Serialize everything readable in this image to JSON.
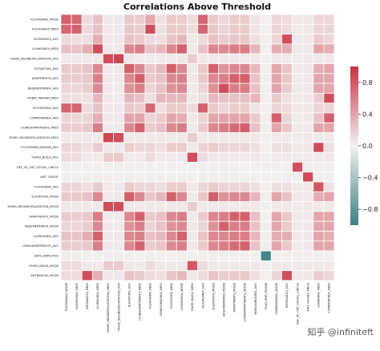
{
  "chart_data": {
    "type": "heatmap",
    "title": "Correlations Above Threshold",
    "rows": [
      "FLOORSMAX_MODE",
      "FLOORSMAX_MEDI",
      "ENTRANCES_AVG",
      "LIVINGAREA_MEDI",
      "YEARS_BEGINEXPLUATATION_AVG",
      "ELEVATORS_AVG",
      "APARTMENTS_AVG",
      "BASEMENTAREA_AVG",
      "ROBIN_MEDIAN_MEDI",
      "FLOORSMAX_AVG",
      "COMMONAREA_AVG",
      "LIVINGAPARTMENTS_MEDI",
      "YEARS_BEGINEXPLUATATION_MEDI",
      "FLOORSMIN_MEDIAN_AVG",
      "YEARS_BUILD_AVG",
      "DEF_30_CNT_SOCIAL_CIRCLE",
      "AMT_CREDIT",
      "FLOORSMIN_AVG",
      "ELEVATORS_MODE",
      "YEARS_BEGINEXPLUATATION_MODE",
      "APARTMENTS_MODE",
      "BASEMENTAREA_MODE",
      "LIVINGAREA_AVG",
      "LIVINGAPARTMENTS_AVG",
      "DAYS_EMPLOYED",
      "YEARS_BUILD_MODE",
      "ENTRANCES_MODE"
    ],
    "columns": [
      "FLOORSMAX_MODE",
      "FLOORSMAX_MEDI",
      "ENTRANCES_MEDI",
      "LIVINGAREA_MEDI",
      "YEARS_BEGINEXPLUATATION_MEDI",
      "YEARS_BEGINEXPLUATATION_AVG",
      "ELEVATORS_AVG",
      "LIVINGAPARTMENTS_MEDI",
      "FLOORSMIN_MEDI",
      "NONLIVINGAREA_MEDI",
      "ELEVATORS_MEDI",
      "LIVINGAREA_MODE",
      "YEARS_BUILD_MEDI",
      "FLOORSMAX_AVG",
      "ELEVATORS_MODE",
      "BASEMENTAREA_MODE",
      "APARTMENTS_MODE",
      "LIVINGAPARTMENTS_MODE",
      "NONLIVINGAREA_AVG",
      "FLAG_EMP_PHONE",
      "COMMONAREA_MODE",
      "ENTRANCES_AVG",
      "DEF_60_CNT_SOCIAL_CIRCLE",
      "AMT_GOODS_PRICE",
      "LANDAREA_MEDI",
      "COMMONAREA_MEDI"
    ],
    "matrix": [
      [
        0.75,
        0.72,
        0.12,
        0.25,
        0.05,
        0.05,
        0.22,
        0.2,
        0.38,
        0.1,
        0.22,
        0.2,
        0.12,
        0.72,
        0.22,
        0.15,
        0.2,
        0.2,
        0.08,
        0.02,
        0.15,
        0.12,
        0.05,
        0.05,
        0.15,
        0.15
      ],
      [
        0.72,
        0.75,
        0.12,
        0.25,
        0.05,
        0.05,
        0.22,
        0.2,
        0.85,
        0.1,
        0.22,
        0.2,
        0.12,
        0.72,
        0.22,
        0.15,
        0.2,
        0.2,
        0.08,
        0.02,
        0.15,
        0.12,
        0.05,
        0.05,
        0.15,
        0.15
      ],
      [
        0.12,
        0.12,
        0.1,
        0.35,
        0.05,
        0.05,
        0.25,
        0.22,
        0.12,
        0.1,
        0.25,
        0.3,
        0.05,
        0.12,
        0.25,
        0.2,
        0.22,
        0.22,
        0.1,
        0.02,
        0.15,
        0.85,
        0.05,
        0.05,
        0.2,
        0.15
      ],
      [
        0.25,
        0.25,
        0.35,
        0.85,
        0.05,
        0.05,
        0.55,
        0.6,
        0.25,
        0.3,
        0.55,
        0.75,
        0.05,
        0.25,
        0.55,
        0.55,
        0.6,
        0.6,
        0.3,
        0.02,
        0.35,
        0.35,
        0.05,
        0.05,
        0.4,
        0.35
      ],
      [
        0.05,
        0.05,
        0.05,
        0.05,
        0.85,
        0.9,
        0.05,
        0.05,
        0.05,
        0.05,
        0.05,
        0.05,
        0.2,
        0.05,
        0.05,
        0.05,
        0.05,
        0.05,
        0.05,
        0.02,
        0.05,
        0.05,
        0.05,
        0.05,
        0.05,
        0.05
      ],
      [
        0.22,
        0.22,
        0.25,
        0.55,
        0.05,
        0.05,
        0.75,
        0.55,
        0.22,
        0.3,
        0.75,
        0.55,
        0.05,
        0.22,
        0.75,
        0.5,
        0.55,
        0.55,
        0.3,
        0.02,
        0.4,
        0.25,
        0.05,
        0.05,
        0.35,
        0.4
      ],
      [
        0.2,
        0.2,
        0.22,
        0.6,
        0.05,
        0.05,
        0.55,
        0.75,
        0.2,
        0.25,
        0.55,
        0.6,
        0.05,
        0.2,
        0.55,
        0.6,
        0.75,
        0.75,
        0.25,
        0.02,
        0.4,
        0.22,
        0.05,
        0.05,
        0.4,
        0.4
      ],
      [
        0.15,
        0.15,
        0.2,
        0.55,
        0.05,
        0.05,
        0.5,
        0.6,
        0.15,
        0.25,
        0.5,
        0.55,
        0.05,
        0.15,
        0.5,
        0.85,
        0.6,
        0.6,
        0.25,
        0.02,
        0.4,
        0.2,
        0.05,
        0.05,
        0.4,
        0.4
      ],
      [
        0.1,
        0.1,
        0.1,
        0.3,
        0.05,
        0.05,
        0.3,
        0.25,
        0.1,
        0.3,
        0.3,
        0.3,
        0.05,
        0.1,
        0.3,
        0.25,
        0.25,
        0.25,
        0.3,
        0.02,
        0.2,
        0.1,
        0.05,
        0.05,
        0.2,
        0.85
      ],
      [
        0.72,
        0.72,
        0.12,
        0.25,
        0.05,
        0.05,
        0.22,
        0.2,
        0.72,
        0.1,
        0.22,
        0.2,
        0.12,
        0.75,
        0.22,
        0.15,
        0.2,
        0.2,
        0.08,
        0.02,
        0.15,
        0.12,
        0.05,
        0.05,
        0.15,
        0.15
      ],
      [
        0.15,
        0.15,
        0.15,
        0.35,
        0.05,
        0.05,
        0.4,
        0.4,
        0.15,
        0.2,
        0.4,
        0.35,
        0.05,
        0.15,
        0.4,
        0.4,
        0.4,
        0.4,
        0.2,
        0.02,
        0.75,
        0.15,
        0.05,
        0.05,
        0.25,
        0.75
      ],
      [
        0.2,
        0.2,
        0.22,
        0.6,
        0.05,
        0.05,
        0.55,
        0.75,
        0.2,
        0.25,
        0.55,
        0.6,
        0.05,
        0.2,
        0.55,
        0.6,
        0.7,
        0.75,
        0.25,
        0.02,
        0.4,
        0.22,
        0.05,
        0.05,
        0.4,
        0.4
      ],
      [
        0.05,
        0.05,
        0.05,
        0.05,
        0.9,
        0.85,
        0.05,
        0.05,
        0.05,
        0.05,
        0.05,
        0.05,
        0.2,
        0.05,
        0.05,
        0.05,
        0.05,
        0.05,
        0.05,
        0.02,
        0.05,
        0.05,
        0.05,
        0.05,
        0.05,
        0.05
      ],
      [
        0.15,
        0.15,
        0.1,
        0.2,
        0.05,
        0.05,
        0.2,
        0.15,
        0.15,
        0.1,
        0.2,
        0.2,
        0.05,
        0.15,
        0.2,
        0.15,
        0.15,
        0.15,
        0.1,
        0.02,
        0.1,
        0.1,
        0.05,
        0.05,
        0.85,
        0.1
      ],
      [
        0.12,
        0.12,
        0.05,
        0.05,
        0.2,
        0.2,
        0.05,
        0.05,
        0.12,
        0.05,
        0.05,
        0.05,
        0.85,
        0.12,
        0.05,
        0.05,
        0.05,
        0.05,
        0.05,
        0.02,
        0.05,
        0.05,
        0.05,
        0.05,
        0.05,
        0.05
      ],
      [
        0.02,
        0.02,
        0.02,
        0.02,
        0.02,
        0.02,
        0.02,
        0.02,
        0.02,
        0.02,
        0.02,
        0.02,
        0.02,
        0.02,
        0.02,
        0.02,
        0.02,
        0.02,
        0.02,
        0.02,
        0.02,
        0.02,
        0.85,
        0.02,
        0.02,
        0.02
      ],
      [
        0.02,
        0.02,
        0.02,
        0.02,
        0.02,
        0.02,
        0.02,
        0.02,
        0.02,
        0.02,
        0.02,
        0.02,
        0.02,
        0.02,
        0.02,
        0.02,
        0.02,
        0.02,
        0.02,
        0.02,
        0.02,
        0.02,
        0.02,
        0.85,
        0.02,
        0.02
      ],
      [
        0.15,
        0.15,
        0.1,
        0.2,
        0.05,
        0.05,
        0.2,
        0.15,
        0.15,
        0.1,
        0.2,
        0.2,
        0.05,
        0.15,
        0.2,
        0.15,
        0.15,
        0.15,
        0.1,
        0.02,
        0.1,
        0.1,
        0.05,
        0.05,
        0.8,
        0.1
      ],
      [
        0.22,
        0.22,
        0.25,
        0.55,
        0.05,
        0.05,
        0.75,
        0.55,
        0.22,
        0.3,
        0.75,
        0.55,
        0.05,
        0.22,
        0.75,
        0.5,
        0.55,
        0.55,
        0.3,
        0.02,
        0.4,
        0.25,
        0.05,
        0.05,
        0.35,
        0.4
      ],
      [
        0.05,
        0.05,
        0.05,
        0.05,
        0.85,
        0.85,
        0.05,
        0.05,
        0.05,
        0.05,
        0.05,
        0.05,
        0.2,
        0.05,
        0.05,
        0.05,
        0.05,
        0.05,
        0.05,
        0.02,
        0.05,
        0.05,
        0.05,
        0.05,
        0.05,
        0.05
      ],
      [
        0.2,
        0.2,
        0.22,
        0.6,
        0.05,
        0.05,
        0.55,
        0.75,
        0.2,
        0.25,
        0.55,
        0.6,
        0.05,
        0.2,
        0.55,
        0.6,
        0.75,
        0.75,
        0.25,
        0.02,
        0.4,
        0.22,
        0.05,
        0.05,
        0.4,
        0.4
      ],
      [
        0.15,
        0.15,
        0.2,
        0.55,
        0.05,
        0.05,
        0.5,
        0.6,
        0.15,
        0.25,
        0.5,
        0.55,
        0.05,
        0.15,
        0.5,
        0.75,
        0.6,
        0.6,
        0.25,
        0.02,
        0.4,
        0.2,
        0.05,
        0.05,
        0.4,
        0.4
      ],
      [
        0.25,
        0.25,
        0.35,
        0.75,
        0.05,
        0.05,
        0.55,
        0.6,
        0.25,
        0.3,
        0.55,
        0.75,
        0.05,
        0.25,
        0.55,
        0.55,
        0.6,
        0.6,
        0.3,
        0.02,
        0.35,
        0.35,
        0.05,
        0.05,
        0.4,
        0.35
      ],
      [
        0.2,
        0.2,
        0.22,
        0.6,
        0.05,
        0.05,
        0.55,
        0.75,
        0.2,
        0.25,
        0.55,
        0.6,
        0.05,
        0.2,
        0.55,
        0.6,
        0.7,
        0.75,
        0.25,
        0.02,
        0.4,
        0.22,
        0.05,
        0.05,
        0.4,
        0.4
      ],
      [
        0.02,
        0.02,
        0.02,
        0.02,
        0.02,
        0.02,
        0.02,
        0.02,
        0.02,
        0.02,
        0.02,
        0.02,
        0.02,
        0.02,
        0.02,
        0.02,
        0.02,
        0.02,
        0.02,
        -0.95,
        0.02,
        0.02,
        0.02,
        0.02,
        0.02,
        0.02
      ],
      [
        0.12,
        0.12,
        0.05,
        0.05,
        0.2,
        0.2,
        0.05,
        0.05,
        0.12,
        0.05,
        0.05,
        0.05,
        0.8,
        0.12,
        0.05,
        0.05,
        0.05,
        0.05,
        0.05,
        0.02,
        0.05,
        0.05,
        0.05,
        0.05,
        0.05,
        0.05
      ],
      [
        0.12,
        0.12,
        0.85,
        0.35,
        0.05,
        0.05,
        0.25,
        0.22,
        0.12,
        0.1,
        0.25,
        0.3,
        0.05,
        0.12,
        0.25,
        0.2,
        0.22,
        0.22,
        0.1,
        0.02,
        0.15,
        0.85,
        0.05,
        0.05,
        0.2,
        0.15
      ]
    ],
    "colorbar": {
      "ticks": [
        0.8,
        0.4,
        0.0,
        -0.4,
        -0.8
      ],
      "tick_labels": [
        "0.8",
        "0.4",
        "0.0",
        "−0.4",
        "−0.8"
      ],
      "range": [
        -1.0,
        1.0
      ],
      "low_color": "#3d7f86",
      "mid_color": "#f2f2f2",
      "high_color": "#c93140"
    }
  },
  "watermark": "知乎 @infiniteft"
}
